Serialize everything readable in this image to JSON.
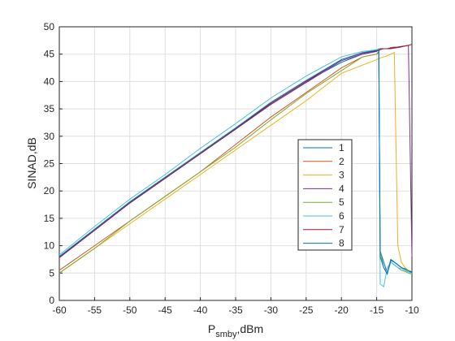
{
  "chart_data": {
    "type": "line",
    "ylabel": "SINAD,dB",
    "xlabel": "P",
    "xlabel_sub": "smby",
    "xlabel_suffix": ",dBm",
    "x": [
      -60,
      -55,
      -50,
      -45,
      -40,
      -35,
      -30,
      -25,
      -20,
      -17,
      -15,
      -14.7,
      -14.5,
      -14,
      -13.5,
      -13,
      -12.5,
      -12,
      -11.5,
      -11,
      -10.5,
      -10
    ],
    "xlim": [
      -60,
      -10
    ],
    "xticks": [
      -60,
      -55,
      -50,
      -45,
      -40,
      -35,
      -30,
      -25,
      -20,
      -15,
      -10
    ],
    "ylim": [
      0,
      50
    ],
    "yticks": [
      0,
      5,
      10,
      15,
      20,
      25,
      30,
      35,
      40,
      45,
      50
    ],
    "grid": true,
    "legend_position": "center-right",
    "series": [
      {
        "name": "1",
        "color": "#0072BD",
        "values": [
          8,
          13,
          18,
          22.5,
          27,
          31.5,
          36,
          40,
          43.5,
          45,
          45.5,
          45.8,
          9,
          7,
          5,
          7.5,
          7,
          6.5,
          6,
          5.8,
          5.5,
          5.2
        ]
      },
      {
        "name": "2",
        "color": "#D95319",
        "values": [
          5.5,
          10,
          14.5,
          19,
          23.5,
          28.5,
          33.5,
          38,
          42.5,
          44.5,
          45,
          45.5,
          45.8,
          46,
          46,
          46.2,
          46.3,
          46.3,
          46.4,
          46.5,
          46.6,
          46.8
        ]
      },
      {
        "name": "3",
        "color": "#EDB120",
        "values": [
          5,
          9.5,
          14,
          18.5,
          23,
          27.5,
          32,
          36.5,
          41.5,
          43,
          44,
          44.2,
          44.3,
          44.5,
          44.7,
          45,
          45.3,
          10,
          7,
          6,
          5.5,
          5
        ]
      },
      {
        "name": "4",
        "color": "#7E2F8E",
        "values": [
          8,
          12.8,
          17.8,
          22.3,
          26.8,
          31.3,
          35.8,
          39.8,
          43.8,
          45,
          45.5,
          45.8,
          45.9,
          46,
          46,
          46,
          46.1,
          46.2,
          46.3,
          46.5,
          46.6,
          8
        ]
      },
      {
        "name": "5",
        "color": "#77AC30",
        "values": [
          5,
          9.5,
          14.5,
          19,
          23.5,
          28,
          33,
          37.8,
          42,
          44.5,
          45,
          45.3,
          9,
          6,
          5,
          7,
          6.5,
          6,
          5.5,
          5.3,
          5,
          4.8
        ]
      },
      {
        "name": "6",
        "color": "#4DBEEE",
        "values": [
          8.3,
          13.5,
          18.5,
          23,
          27.8,
          32.3,
          37,
          41,
          44.5,
          45.5,
          45.8,
          46,
          3,
          2.5,
          6,
          7,
          6.5,
          6,
          5.8,
          5.5,
          5.2,
          5
        ]
      },
      {
        "name": "7",
        "color": "#A2142F",
        "values": [
          7.8,
          12.8,
          17.8,
          22.3,
          26.8,
          31.3,
          36,
          40,
          44,
          45.2,
          45.6,
          45.8,
          46,
          46,
          46,
          46.1,
          46.2,
          46.3,
          46.4,
          46.5,
          46.6,
          46.8
        ]
      },
      {
        "name": "8",
        "color": "#0072BD",
        "values": [
          8,
          13,
          18,
          22.5,
          27,
          31.5,
          36.2,
          40.2,
          44,
          45.3,
          45.7,
          45.8,
          8,
          6,
          4.8,
          7.3,
          7,
          6.5,
          6,
          5.7,
          5.4,
          5.1
        ]
      }
    ]
  }
}
